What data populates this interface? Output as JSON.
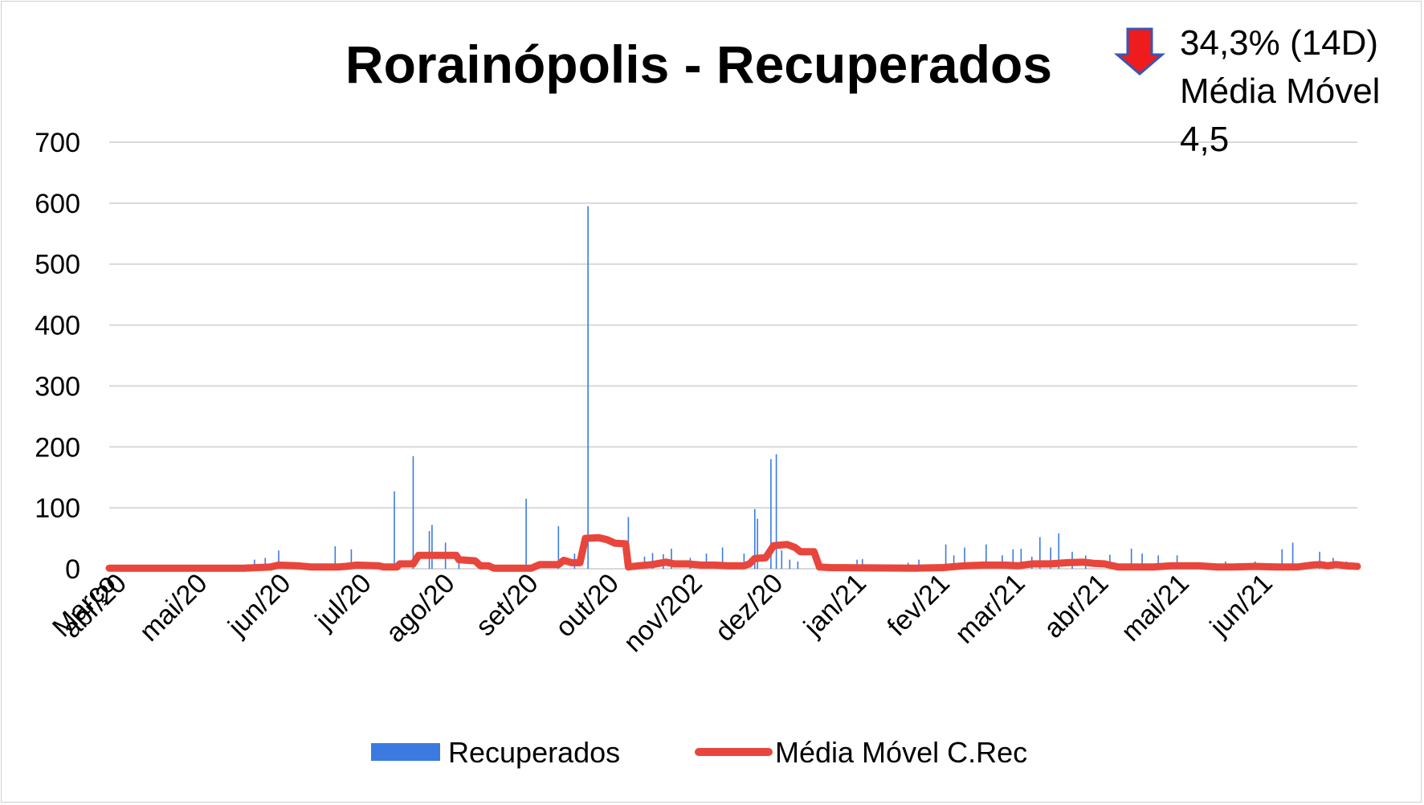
{
  "chart_data": {
    "type": "bar",
    "title": "Rorainópolis - Recuperados",
    "badge": {
      "line1": "34,3% (14D)",
      "line2": "Média Móvel",
      "line3": "4,5",
      "arrow": "down-arrow-icon",
      "arrow_color": "#ee1c1c",
      "arrow_border": "#3a55b4"
    },
    "ylim": [
      0,
      700
    ],
    "yticks": [
      "0",
      "100",
      "200",
      "300",
      "400",
      "500",
      "600",
      "700"
    ],
    "xticks": [
      {
        "label": "Março",
        "day": 0
      },
      {
        "label": "abr/20",
        "day": 4
      },
      {
        "label": "mai/20",
        "day": 34
      },
      {
        "label": "jun/20",
        "day": 65
      },
      {
        "label": "jul/20",
        "day": 95
      },
      {
        "label": "ago/20",
        "day": 126
      },
      {
        "label": "set/20",
        "day": 157
      },
      {
        "label": "out/20",
        "day": 187
      },
      {
        "label": "nov/202",
        "day": 218
      },
      {
        "label": "dez/20",
        "day": 248
      },
      {
        "label": "jan/21",
        "day": 279
      },
      {
        "label": "fev/21",
        "day": 310
      },
      {
        "label": "mar/21",
        "day": 338
      },
      {
        "label": "abr/21",
        "day": 369
      },
      {
        "label": "mai/21",
        "day": 399
      },
      {
        "label": "jun/21",
        "day": 430
      }
    ],
    "x_range_days": [
      0,
      464
    ],
    "series": [
      {
        "name": "Recuperados",
        "type": "bar",
        "color": "#3b7be0",
        "points": [
          [
            54,
            15
          ],
          [
            58,
            18
          ],
          [
            63,
            30
          ],
          [
            84,
            37
          ],
          [
            90,
            32
          ],
          [
            106,
            127
          ],
          [
            113,
            185
          ],
          [
            119,
            62
          ],
          [
            120,
            72
          ],
          [
            125,
            43
          ],
          [
            130,
            25
          ],
          [
            155,
            115
          ],
          [
            167,
            70
          ],
          [
            173,
            25
          ],
          [
            178,
            595
          ],
          [
            193,
            85
          ],
          [
            199,
            20
          ],
          [
            202,
            26
          ],
          [
            206,
            24
          ],
          [
            209,
            33
          ],
          [
            216,
            18
          ],
          [
            222,
            25
          ],
          [
            228,
            35
          ],
          [
            236,
            25
          ],
          [
            240,
            98
          ],
          [
            241,
            82
          ],
          [
            246,
            180
          ],
          [
            248,
            188
          ],
          [
            250,
            30
          ],
          [
            253,
            15
          ],
          [
            256,
            12
          ],
          [
            278,
            15
          ],
          [
            280,
            16
          ],
          [
            297,
            10
          ],
          [
            301,
            15
          ],
          [
            311,
            40
          ],
          [
            314,
            22
          ],
          [
            318,
            35
          ],
          [
            326,
            40
          ],
          [
            332,
            22
          ],
          [
            336,
            32
          ],
          [
            339,
            33
          ],
          [
            343,
            20
          ],
          [
            346,
            52
          ],
          [
            350,
            35
          ],
          [
            353,
            58
          ],
          [
            358,
            28
          ],
          [
            363,
            22
          ],
          [
            372,
            23
          ],
          [
            380,
            33
          ],
          [
            384,
            25
          ],
          [
            390,
            22
          ],
          [
            397,
            22
          ],
          [
            415,
            12
          ],
          [
            426,
            12
          ],
          [
            436,
            32
          ],
          [
            440,
            43
          ],
          [
            450,
            28
          ],
          [
            455,
            18
          ],
          [
            460,
            12
          ]
        ]
      },
      {
        "name": "Média Móvel C.Rec",
        "type": "line",
        "color": "#e8463c",
        "points": [
          [
            0,
            1
          ],
          [
            50,
            1
          ],
          [
            60,
            3
          ],
          [
            63,
            6
          ],
          [
            70,
            5
          ],
          [
            75,
            3
          ],
          [
            85,
            3
          ],
          [
            88,
            4
          ],
          [
            92,
            6
          ],
          [
            100,
            5
          ],
          [
            102,
            3
          ],
          [
            107,
            3
          ],
          [
            108,
            8
          ],
          [
            113,
            8
          ],
          [
            115,
            22
          ],
          [
            126,
            22
          ],
          [
            129,
            22
          ],
          [
            130,
            15
          ],
          [
            136,
            13
          ],
          [
            138,
            5
          ],
          [
            141,
            5
          ],
          [
            143,
            1
          ],
          [
            157,
            1
          ],
          [
            160,
            7
          ],
          [
            167,
            7
          ],
          [
            169,
            14
          ],
          [
            172,
            10
          ],
          [
            175,
            10
          ],
          [
            177,
            50
          ],
          [
            182,
            51
          ],
          [
            185,
            48
          ],
          [
            188,
            42
          ],
          [
            192,
            41
          ],
          [
            193,
            3
          ],
          [
            197,
            5
          ],
          [
            202,
            7
          ],
          [
            207,
            11
          ],
          [
            210,
            8
          ],
          [
            215,
            8
          ],
          [
            220,
            6
          ],
          [
            225,
            6
          ],
          [
            230,
            5
          ],
          [
            236,
            5
          ],
          [
            238,
            8
          ],
          [
            240,
            17
          ],
          [
            244,
            18
          ],
          [
            247,
            38
          ],
          [
            252,
            40
          ],
          [
            255,
            35
          ],
          [
            257,
            28
          ],
          [
            262,
            28
          ],
          [
            264,
            3
          ],
          [
            268,
            2
          ],
          [
            300,
            1
          ],
          [
            310,
            2
          ],
          [
            318,
            5
          ],
          [
            325,
            6
          ],
          [
            333,
            6
          ],
          [
            338,
            5
          ],
          [
            343,
            8
          ],
          [
            350,
            8
          ],
          [
            356,
            10
          ],
          [
            362,
            11
          ],
          [
            366,
            9
          ],
          [
            370,
            8
          ],
          [
            375,
            3
          ],
          [
            388,
            3
          ],
          [
            395,
            5
          ],
          [
            405,
            5
          ],
          [
            412,
            3
          ],
          [
            418,
            3
          ],
          [
            426,
            4
          ],
          [
            434,
            3
          ],
          [
            442,
            3
          ],
          [
            447,
            6
          ],
          [
            450,
            7
          ],
          [
            453,
            5
          ],
          [
            456,
            7
          ],
          [
            460,
            5
          ],
          [
            464,
            4
          ]
        ]
      }
    ],
    "grid": true,
    "legend": {
      "position": "bottom"
    }
  }
}
